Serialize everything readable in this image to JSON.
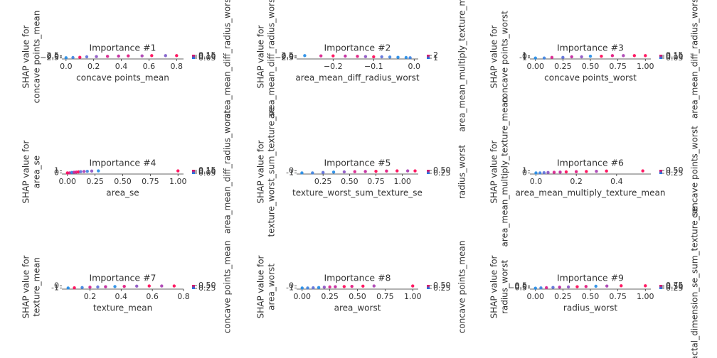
{
  "chart_data": [
    {
      "type": "scatter",
      "title": "Importance #1",
      "x_label": "concave points_mean",
      "y_label": [
        "SHAP value for",
        "concave points_mean"
      ],
      "color_label": "area_mean_diff_radius_worst",
      "xlim": [
        -0.03,
        0.85
      ],
      "xticks": [
        {
          "value": 0,
          "label": "0.0"
        },
        {
          "value": 0.2,
          "label": "0.2"
        },
        {
          "value": 0.4,
          "label": "0.4"
        },
        {
          "value": 0.6,
          "label": "0.6"
        },
        {
          "value": 0.8,
          "label": "0.8"
        }
      ],
      "ylim": [
        -3,
        3
      ],
      "yticks": [
        {
          "value": -2.5,
          "label": "−2.5"
        },
        {
          "value": 0,
          "label": "0.0"
        },
        {
          "value": 2.5,
          "label": "2.5"
        }
      ],
      "clim": [
        0.05,
        0.15
      ],
      "cticks": [
        {
          "value": 0.05,
          "label": "0.05"
        },
        {
          "value": 0.1,
          "label": "0.10"
        },
        {
          "value": 0.15,
          "label": "0.15"
        }
      ],
      "x": [
        0.0,
        0.05,
        0.1,
        0.15,
        0.22,
        0.3,
        0.38,
        0.45,
        0.55,
        0.62,
        0.72,
        0.8
      ],
      "values": [
        -2,
        -1.5,
        -1,
        0,
        0.5,
        1,
        1.5,
        2,
        2,
        2.5,
        2.5,
        2.5
      ],
      "point_colors": [
        "#1e88e5",
        "#3a7fe0",
        "#ff0052",
        "#5a6cd8",
        "#8a4fc2",
        "#d81b8a",
        "#c01e9a",
        "#e0107a",
        "#a93ab0",
        "#ff0052",
        "#7a56c8",
        "#ff0052"
      ]
    },
    {
      "type": "scatter",
      "title": "Importance #2",
      "x_label": "area_mean_diff_radius_worst",
      "y_label": [
        "SHAP value for",
        "area_mean_diff_radius_worst"
      ],
      "color_label": "area_mean_multiply_texture_mean",
      "xlim": [
        -0.29,
        0.01
      ],
      "xticks": [
        {
          "value": -0.2,
          "label": "−0.2"
        },
        {
          "value": -0.1,
          "label": "−0.1"
        },
        {
          "value": 0,
          "label": "0.0"
        }
      ],
      "ylim": [
        -3,
        3
      ],
      "yticks": [
        {
          "value": -2.5,
          "label": "−2.5"
        },
        {
          "value": 0,
          "label": "0.0"
        },
        {
          "value": 2.5,
          "label": "2.5"
        }
      ],
      "clim": [
        1,
        2
      ],
      "cticks": [
        1,
        2
      ],
      "x": [
        -0.27,
        -0.23,
        -0.2,
        -0.17,
        -0.14,
        -0.12,
        -0.1,
        -0.08,
        -0.06,
        -0.04,
        -0.02,
        -0.01
      ],
      "values": [
        2.5,
        2,
        2,
        1.5,
        1,
        0.5,
        0,
        0,
        -0.5,
        -1,
        -1.5,
        -2
      ],
      "point_colors": [
        "#1e88e5",
        "#d81b8a",
        "#ff0052",
        "#c01e9a",
        "#e0107a",
        "#8a4fc2",
        "#ff0052",
        "#5a6cd8",
        "#3a7fe0",
        "#1e88e5",
        "#1e88e5",
        "#3a7fe0"
      ]
    },
    {
      "type": "scatter",
      "title": "Importance #3",
      "x_label": "concave points_worst",
      "y_label": [
        "SHAP value for",
        "concave points_worst"
      ],
      "color_label": "area_mean_diff_radius_worst",
      "xlim": [
        -0.05,
        1.05
      ],
      "xticks": [
        {
          "value": 0,
          "label": "0.00"
        },
        0.25,
        {
          "value": 0.5,
          "label": "0.50"
        },
        0.75,
        {
          "value": 1,
          "label": "1.00"
        }
      ],
      "ylim": [
        -1.2,
        1.2
      ],
      "yticks": [
        -1,
        0,
        1
      ],
      "clim": [
        0.05,
        0.15
      ],
      "cticks": [
        {
          "value": 0.05,
          "label": "0.05"
        },
        {
          "value": 0.1,
          "label": "0.10"
        },
        {
          "value": 0.15,
          "label": "0.15"
        }
      ],
      "x": [
        0.0,
        0.08,
        0.15,
        0.25,
        0.33,
        0.42,
        0.5,
        0.6,
        0.7,
        0.8,
        0.9,
        1.0
      ],
      "values": [
        -1,
        -1,
        -0.5,
        -0.5,
        0,
        0,
        0.5,
        0.5,
        1,
        1,
        1,
        1
      ],
      "point_colors": [
        "#1e88e5",
        "#3a7fe0",
        "#d81b8a",
        "#5a6cd8",
        "#c01e9a",
        "#8a4fc2",
        "#1e88e5",
        "#ff0052",
        "#e0107a",
        "#a93ab0",
        "#ff0052",
        "#ff0052"
      ]
    },
    {
      "type": "scatter",
      "title": "Importance #4",
      "x_label": "area_se",
      "y_label": [
        "SHAP value for",
        "area_se"
      ],
      "color_label": "area_mean_diff_radius_worst",
      "xlim": [
        -0.05,
        1.05
      ],
      "xticks": [
        {
          "value": 0,
          "label": "0.00"
        },
        0.25,
        {
          "value": 0.5,
          "label": "0.50"
        },
        0.75,
        {
          "value": 1,
          "label": "1.00"
        }
      ],
      "ylim": [
        -0.2,
        1.2
      ],
      "yticks": [
        0,
        1
      ],
      "clim": [
        0.05,
        0.15
      ],
      "cticks": [
        {
          "value": 0.05,
          "label": "0.05"
        },
        {
          "value": 0.1,
          "label": "0.10"
        },
        {
          "value": 0.15,
          "label": "0.15"
        }
      ],
      "x": [
        0.0,
        0.02,
        0.04,
        0.06,
        0.08,
        0.1,
        0.12,
        0.15,
        0.18,
        0.22,
        0.28,
        1.0
      ],
      "values": [
        0,
        0,
        0.2,
        0.3,
        0.4,
        0.5,
        0.6,
        0.7,
        0.8,
        0.9,
        1,
        1
      ],
      "point_colors": [
        "#ff0052",
        "#d81b8a",
        "#1e88e5",
        "#c01e9a",
        "#e0107a",
        "#ff0052",
        "#5a6cd8",
        "#a93ab0",
        "#3a7fe0",
        "#8a4fc2",
        "#1e88e5",
        "#ff0052"
      ]
    },
    {
      "type": "scatter",
      "title": "Importance #5",
      "x_label": "texture_worst_sum_texture_se",
      "y_label": [
        "SHAP value for",
        "texture_worst_sum_texture_se"
      ],
      "color_label": "radius_worst",
      "xlim": [
        0.0,
        1.15
      ],
      "xticks": [
        0.25,
        {
          "value": 0.5,
          "label": "0.50"
        },
        0.75,
        {
          "value": 1,
          "label": "1.00"
        }
      ],
      "ylim": [
        -1.2,
        0.2
      ],
      "yticks": [
        -1,
        0
      ],
      "clim": [
        0.25,
        0.5
      ],
      "cticks": [
        0.25,
        {
          "value": 0.5,
          "label": "0.50"
        }
      ],
      "x": [
        0.05,
        0.15,
        0.25,
        0.35,
        0.45,
        0.55,
        0.65,
        0.75,
        0.85,
        0.95,
        1.05,
        1.12
      ],
      "values": [
        -1,
        -1,
        -0.8,
        -0.6,
        -0.5,
        -0.4,
        -0.3,
        -0.2,
        -0.1,
        0,
        0,
        0
      ],
      "point_colors": [
        "#1e88e5",
        "#3a7fe0",
        "#5a6cd8",
        "#1e88e5",
        "#8a4fc2",
        "#d81b8a",
        "#c01e9a",
        "#ff0052",
        "#e0107a",
        "#ff0052",
        "#a93ab0",
        "#ff0052"
      ]
    },
    {
      "type": "scatter",
      "title": "Importance #6",
      "x_label": "area_mean_multiply_texture_mean",
      "y_label": [
        "SHAP value for",
        "area_mean_multiply_texture_mean"
      ],
      "color_label": "concave points_worst",
      "xlim": [
        -0.03,
        0.57
      ],
      "xticks": [
        {
          "value": 0,
          "label": "0.0"
        },
        0.2,
        0.4
      ],
      "ylim": [
        -0.2,
        1.2
      ],
      "yticks": [
        0,
        1
      ],
      "clim": [
        0.25,
        0.5
      ],
      "cticks": [
        0.25,
        {
          "value": 0.5,
          "label": "0.50"
        }
      ],
      "x": [
        0.0,
        0.02,
        0.04,
        0.06,
        0.09,
        0.12,
        0.15,
        0.2,
        0.25,
        0.3,
        0.35,
        0.53
      ],
      "values": [
        0,
        0,
        0.1,
        0.2,
        0.3,
        0.4,
        0.5,
        0.6,
        0.7,
        0.8,
        0.9,
        1
      ],
      "point_colors": [
        "#1e88e5",
        "#3a7fe0",
        "#5a6cd8",
        "#8a4fc2",
        "#d81b8a",
        "#c01e9a",
        "#ff0052",
        "#e0107a",
        "#ff0052",
        "#a93ab0",
        "#ff0052",
        "#ff0052"
      ]
    },
    {
      "type": "scatter",
      "title": "Importance #7",
      "x_label": "texture_mean",
      "y_label": [
        "SHAP value for",
        "texture_mean"
      ],
      "color_label": "concave points_mean",
      "xlim": [
        0.02,
        0.8
      ],
      "xticks": [
        0.2,
        0.4,
        0.6,
        0.8
      ],
      "ylim": [
        -1.2,
        0.2
      ],
      "yticks": [
        -1,
        0
      ],
      "clim": [
        0.25,
        0.5
      ],
      "cticks": [
        0.25,
        {
          "value": 0.5,
          "label": "0.50"
        }
      ],
      "x": [
        0.06,
        0.1,
        0.15,
        0.2,
        0.25,
        0.3,
        0.36,
        0.42,
        0.5,
        0.58,
        0.66,
        0.74
      ],
      "values": [
        -1,
        -0.9,
        -0.8,
        -0.6,
        -0.5,
        -0.4,
        -0.3,
        -0.2,
        -0.1,
        0,
        0,
        0
      ],
      "point_colors": [
        "#1e88e5",
        "#ff0052",
        "#3a7fe0",
        "#d81b8a",
        "#5a6cd8",
        "#c01e9a",
        "#1e88e5",
        "#e0107a",
        "#8a4fc2",
        "#ff0052",
        "#a93ab0",
        "#ff0052"
      ]
    },
    {
      "type": "scatter",
      "title": "Importance #8",
      "x_label": "area_worst",
      "y_label": [
        "SHAP value for",
        "area_worst"
      ],
      "color_label": "concave points_mean",
      "xlim": [
        -0.05,
        1.05
      ],
      "xticks": [
        {
          "value": 0,
          "label": "0.00"
        },
        0.25,
        {
          "value": 0.5,
          "label": "0.50"
        },
        0.75,
        {
          "value": 1,
          "label": "1.00"
        }
      ],
      "ylim": [
        -1.2,
        0.2
      ],
      "yticks": [
        -1,
        0
      ],
      "clim": [
        0.25,
        0.5
      ],
      "cticks": [
        0.25,
        {
          "value": 0.5,
          "label": "0.50"
        }
      ],
      "x": [
        0.0,
        0.05,
        0.1,
        0.15,
        0.2,
        0.25,
        0.3,
        0.38,
        0.45,
        0.55,
        0.65,
        1.0
      ],
      "values": [
        -1,
        -1,
        -0.9,
        -0.8,
        -0.6,
        -0.5,
        -0.4,
        -0.3,
        -0.2,
        -0.1,
        0,
        0
      ],
      "point_colors": [
        "#1e88e5",
        "#3a7fe0",
        "#5a6cd8",
        "#1e88e5",
        "#8a4fc2",
        "#d81b8a",
        "#c01e9a",
        "#ff0052",
        "#e0107a",
        "#ff0052",
        "#a93ab0",
        "#ff0052"
      ]
    },
    {
      "type": "scatter",
      "title": "Importance #9",
      "x_label": "radius_worst",
      "y_label": [
        "SHAP value for",
        "radius_worst"
      ],
      "color_label": "fractal_dimension_se_sum_texture_se",
      "xlim": [
        -0.05,
        1.05
      ],
      "xticks": [
        {
          "value": 0,
          "label": "0.00"
        },
        0.25,
        {
          "value": 0.5,
          "label": "0.50"
        },
        0.75,
        {
          "value": 1,
          "label": "1.00"
        }
      ],
      "ylim": [
        -0.6,
        0.6
      ],
      "yticks": [
        {
          "value": -0.5,
          "label": "−0.5"
        },
        {
          "value": 0,
          "label": "0.0"
        },
        0.5
      ],
      "clim": [
        0.25,
        0.75
      ],
      "cticks": [
        0.25,
        {
          "value": 0.5,
          "label": "0.50"
        },
        0.75
      ],
      "x": [
        0.0,
        0.05,
        0.1,
        0.16,
        0.22,
        0.3,
        0.38,
        0.46,
        0.55,
        0.65,
        0.78,
        1.0
      ],
      "values": [
        -0.5,
        -0.4,
        -0.3,
        -0.2,
        -0.1,
        0,
        0.1,
        0.2,
        0.3,
        0.4,
        0.5,
        0.5
      ],
      "point_colors": [
        "#1e88e5",
        "#3a7fe0",
        "#d81b8a",
        "#5a6cd8",
        "#c01e9a",
        "#8a4fc2",
        "#ff0052",
        "#e0107a",
        "#1e88e5",
        "#a93ab0",
        "#ff0052",
        "#ff0052"
      ]
    }
  ]
}
